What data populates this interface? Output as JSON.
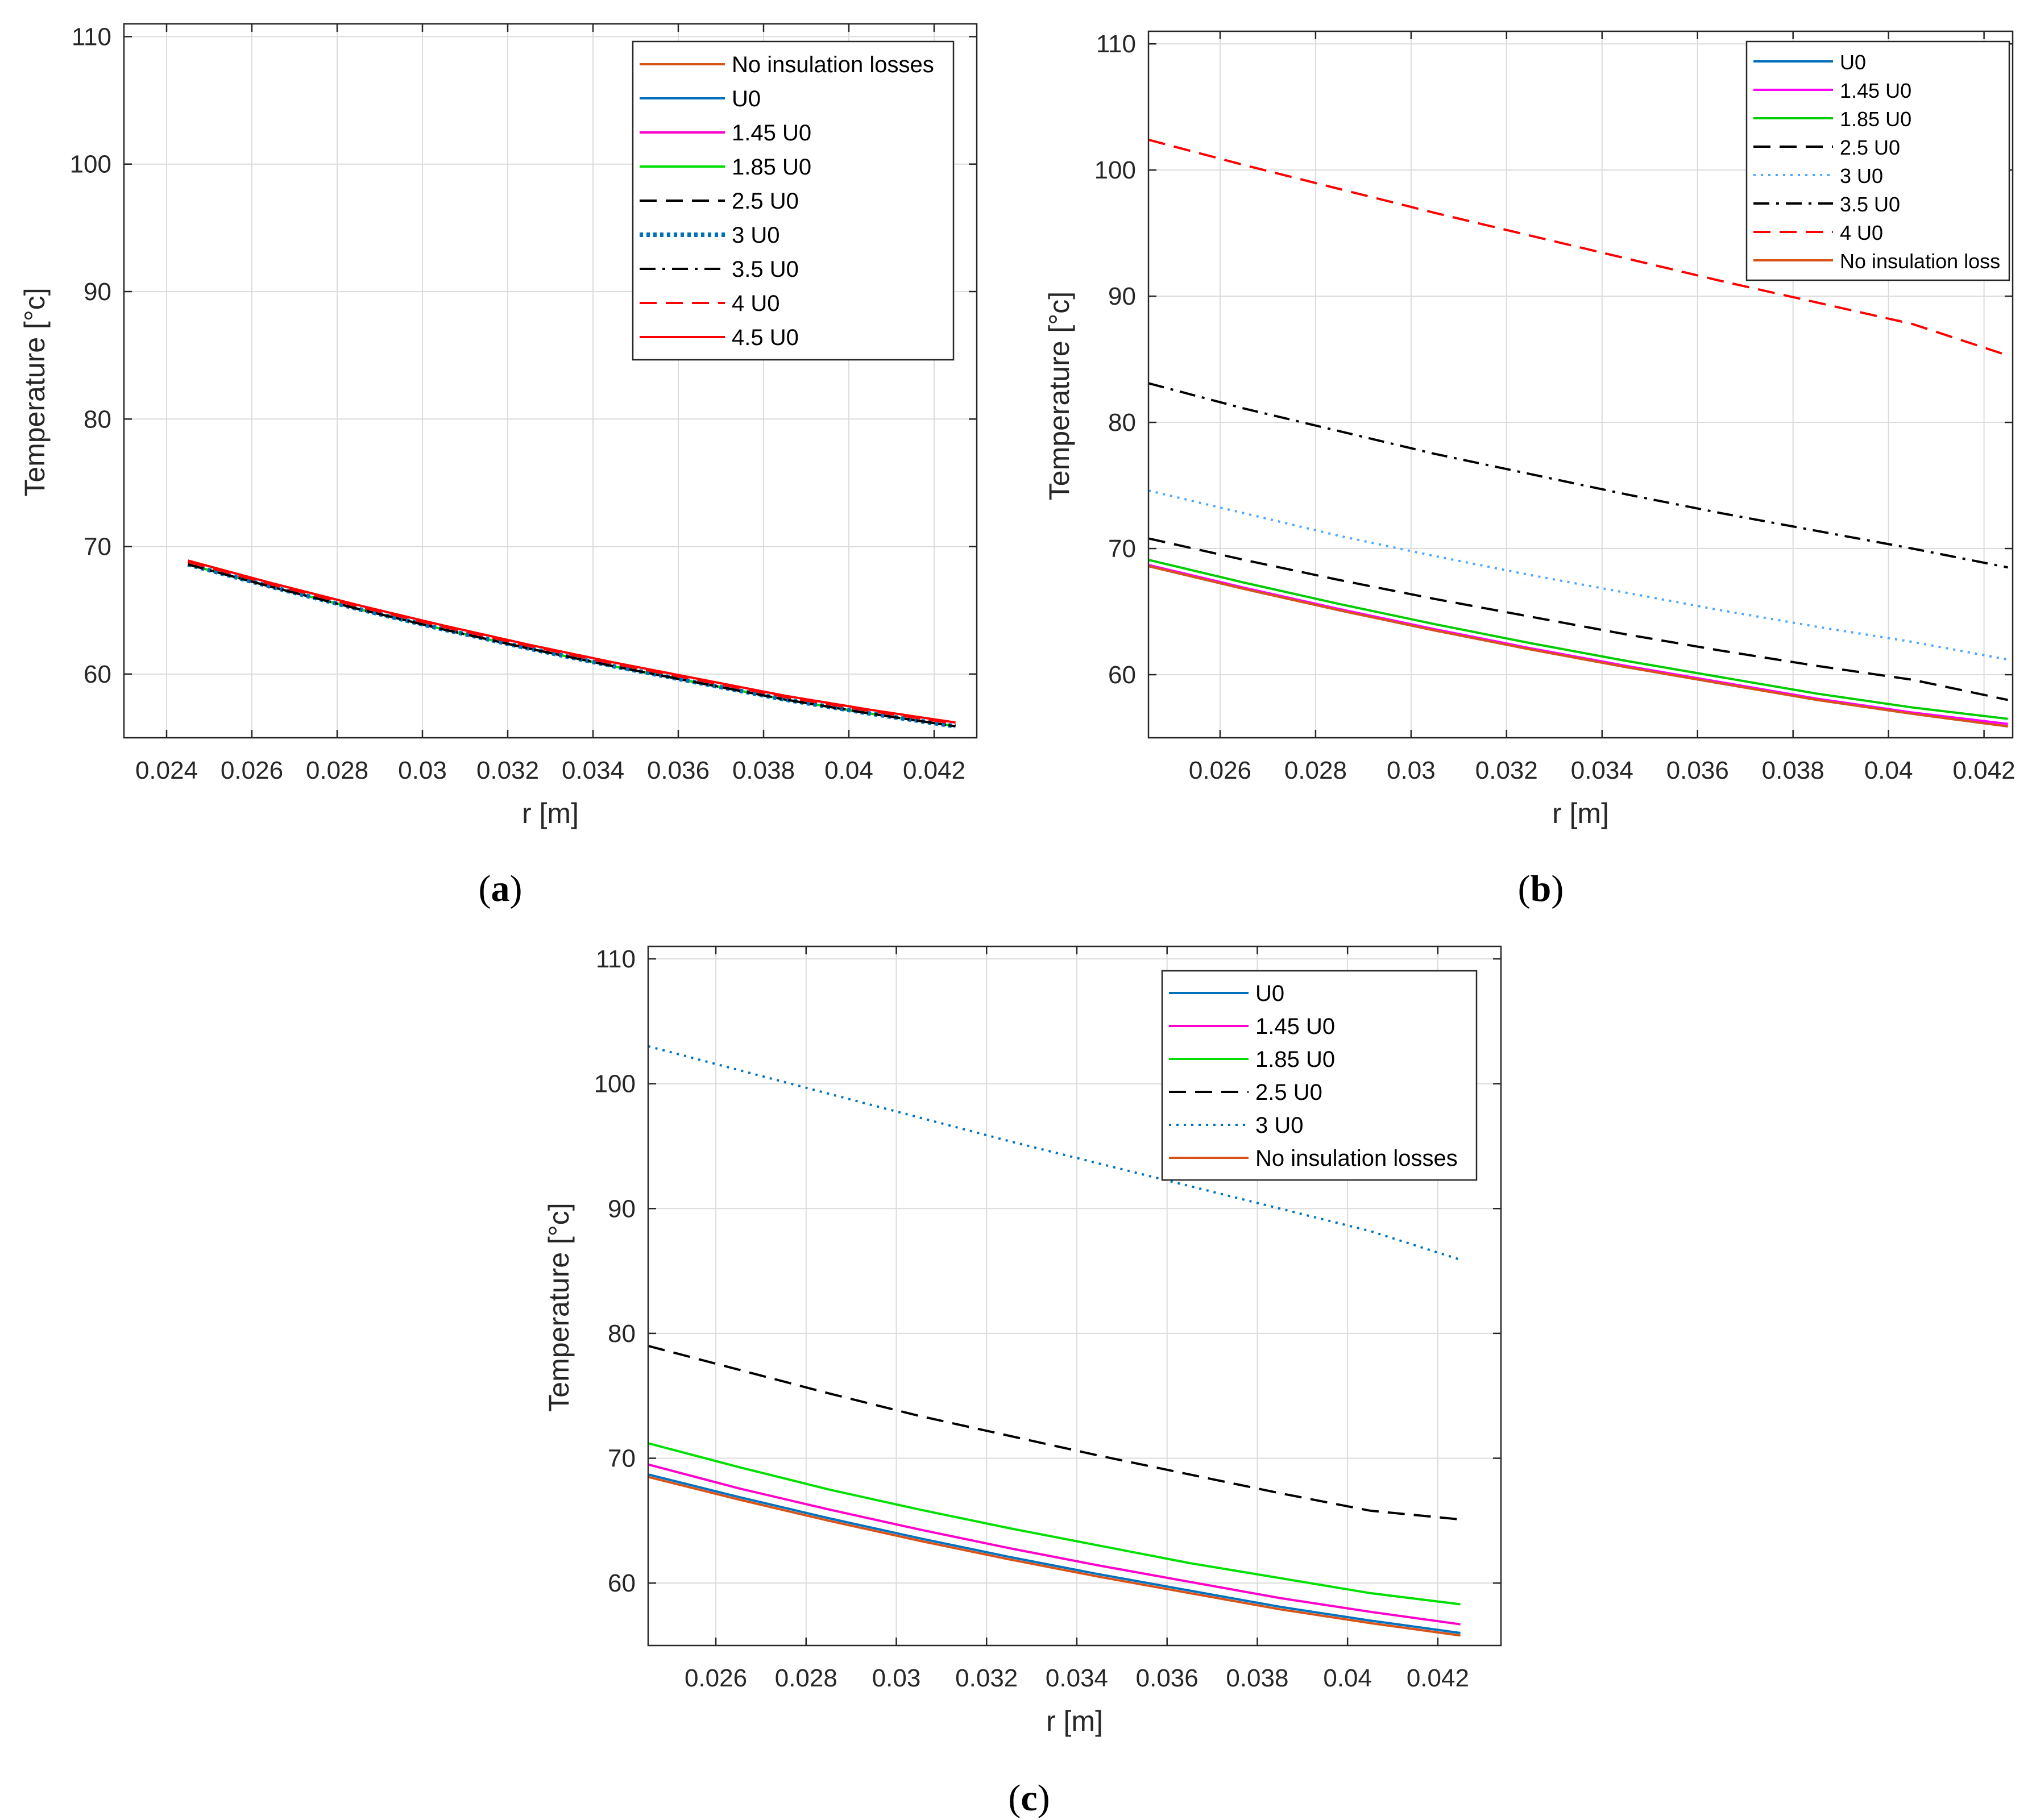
{
  "chart_data": [
    {
      "panel": "a",
      "type": "line",
      "xlabel": "r [m]",
      "ylabel": "Temperature [°c]",
      "xlim": [
        0.023,
        0.043
      ],
      "ylim": [
        55,
        111
      ],
      "xticks": [
        0.024,
        0.026,
        0.028,
        0.03,
        0.032,
        0.034,
        0.036,
        0.038,
        0.04,
        0.042
      ],
      "xtick_labels": [
        "0.024",
        "0.026",
        "0.028",
        "0.03",
        "0.032",
        "0.034",
        "0.036",
        "0.038",
        "0.04",
        "0.042"
      ],
      "yticks": [
        60,
        70,
        80,
        90,
        100,
        110
      ],
      "ytick_labels": [
        "60",
        "70",
        "80",
        "90",
        "100",
        "110"
      ],
      "grid": true,
      "legend_position": "top-right",
      "x": [
        0.0245,
        0.0265,
        0.0285,
        0.0305,
        0.0325,
        0.0345,
        0.0365,
        0.0385,
        0.0405,
        0.0425
      ],
      "series": [
        {
          "name": "No insulation losses",
          "color": "#d95319",
          "style": "solid",
          "values": [
            68.6,
            66.8,
            65.1,
            63.5,
            62.0,
            60.6,
            59.3,
            58.0,
            56.9,
            55.9
          ]
        },
        {
          "name": "U0",
          "color": "#0072bd",
          "style": "solid",
          "values": [
            68.6,
            66.8,
            65.1,
            63.5,
            62.0,
            60.6,
            59.3,
            58.0,
            56.9,
            55.9
          ]
        },
        {
          "name": "1.45 U0",
          "color": "#ff00cc",
          "style": "solid",
          "values": [
            68.6,
            66.8,
            65.1,
            63.5,
            62.0,
            60.6,
            59.3,
            58.0,
            56.9,
            55.9
          ]
        },
        {
          "name": "1.85 U0",
          "color": "#00e000",
          "style": "solid",
          "values": [
            68.6,
            66.8,
            65.1,
            63.5,
            62.0,
            60.6,
            59.3,
            58.0,
            56.9,
            55.9
          ]
        },
        {
          "name": "2.5 U0",
          "color": "#000000",
          "style": "dashed",
          "values": [
            68.6,
            66.8,
            65.1,
            63.5,
            62.0,
            60.6,
            59.3,
            58.0,
            56.9,
            55.9
          ]
        },
        {
          "name": "3 U0",
          "color": "#0072bd",
          "style": "dotted-bold",
          "values": [
            68.6,
            66.8,
            65.1,
            63.5,
            62.0,
            60.6,
            59.3,
            58.0,
            56.9,
            55.9
          ]
        },
        {
          "name": "3.5 U0",
          "color": "#000000",
          "style": "dashdot",
          "values": [
            68.6,
            66.8,
            65.1,
            63.5,
            62.0,
            60.6,
            59.3,
            58.0,
            56.9,
            55.9
          ]
        },
        {
          "name": "4 U0",
          "color": "#ff0000",
          "style": "dashed",
          "values": [
            68.8,
            67.0,
            65.3,
            63.7,
            62.2,
            60.8,
            59.5,
            58.2,
            57.1,
            56.1
          ]
        },
        {
          "name": "4.5 U0",
          "color": "#ff0000",
          "style": "solid",
          "values": [
            68.9,
            67.1,
            65.4,
            63.8,
            62.3,
            60.9,
            59.6,
            58.3,
            57.2,
            56.2
          ]
        }
      ]
    },
    {
      "panel": "b",
      "type": "line",
      "xlabel": "r [m]",
      "ylabel": "Temperature [°c]",
      "xlim": [
        0.0245,
        0.0426
      ],
      "ylim": [
        55,
        111
      ],
      "xticks": [
        0.026,
        0.028,
        0.03,
        0.032,
        0.034,
        0.036,
        0.038,
        0.04,
        0.042
      ],
      "xtick_labels": [
        "0.026",
        "0.028",
        "0.03",
        "0.032",
        "0.034",
        "0.036",
        "0.038",
        "0.04",
        "0.042"
      ],
      "yticks": [
        60,
        70,
        80,
        90,
        100,
        110
      ],
      "ytick_labels": [
        "60",
        "70",
        "80",
        "90",
        "100",
        "110"
      ],
      "grid": true,
      "legend_position": "top-right",
      "x": [
        0.0245,
        0.0265,
        0.0285,
        0.0305,
        0.0325,
        0.0345,
        0.0365,
        0.0385,
        0.0405,
        0.0425
      ],
      "series": [
        {
          "name": "U0",
          "color": "#0072bd",
          "style": "solid",
          "values": [
            68.6,
            66.8,
            65.1,
            63.5,
            62.0,
            60.6,
            59.3,
            58.0,
            56.9,
            55.9
          ]
        },
        {
          "name": "1.45 U0",
          "color": "#ff00ff",
          "style": "solid",
          "values": [
            68.7,
            66.9,
            65.2,
            63.6,
            62.1,
            60.7,
            59.4,
            58.1,
            57.0,
            56.1
          ]
        },
        {
          "name": "1.85 U0",
          "color": "#00cc00",
          "style": "solid",
          "values": [
            69.1,
            67.3,
            65.6,
            64.0,
            62.5,
            61.1,
            59.8,
            58.5,
            57.4,
            56.5
          ]
        },
        {
          "name": "2.5 U0",
          "color": "#000000",
          "style": "dashed",
          "values": [
            70.8,
            69.1,
            67.5,
            66.0,
            64.6,
            63.2,
            61.9,
            60.7,
            59.6,
            58.0
          ]
        },
        {
          "name": "3 U0",
          "color": "#4da6ff",
          "style": "dotted",
          "values": [
            74.6,
            72.8,
            71.0,
            69.4,
            67.9,
            66.5,
            65.1,
            63.8,
            62.6,
            61.2
          ]
        },
        {
          "name": "3.5 U0",
          "color": "#000000",
          "style": "dashdot",
          "values": [
            83.1,
            81.1,
            79.3,
            77.5,
            75.9,
            74.3,
            72.8,
            71.4,
            70.0,
            68.5
          ]
        },
        {
          "name": "4 U0",
          "color": "#ff0000",
          "style": "dashed",
          "values": [
            102.4,
            100.4,
            98.5,
            96.6,
            94.8,
            93.0,
            91.2,
            89.5,
            87.8,
            85.3
          ]
        },
        {
          "name": "No insulation loss",
          "color": "#d95319",
          "style": "solid",
          "values": [
            68.6,
            66.8,
            65.1,
            63.5,
            62.0,
            60.6,
            59.3,
            58.0,
            56.9,
            55.9
          ]
        }
      ]
    },
    {
      "panel": "c",
      "type": "line",
      "xlabel": "r [m]",
      "ylabel": "Temperature [°c]",
      "xlim": [
        0.0245,
        0.0434
      ],
      "ylim": [
        55,
        111
      ],
      "xticks": [
        0.026,
        0.028,
        0.03,
        0.032,
        0.034,
        0.036,
        0.038,
        0.04,
        0.042
      ],
      "xtick_labels": [
        "0.026",
        "0.028",
        "0.03",
        "0.032",
        "0.034",
        "0.036",
        "0.038",
        "0.04",
        "0.042"
      ],
      "yticks": [
        60,
        70,
        80,
        90,
        100,
        110
      ],
      "ytick_labels": [
        "60",
        "70",
        "80",
        "90",
        "100",
        "110"
      ],
      "grid": true,
      "legend_position": "top-right",
      "x": [
        0.0245,
        0.0265,
        0.0285,
        0.0305,
        0.0325,
        0.0345,
        0.0365,
        0.0385,
        0.0405,
        0.0425
      ],
      "series": [
        {
          "name": "U0",
          "color": "#0072bd",
          "style": "solid",
          "values": [
            68.7,
            66.9,
            65.2,
            63.6,
            62.1,
            60.7,
            59.4,
            58.1,
            57.0,
            56.0
          ]
        },
        {
          "name": "1.45 U0",
          "color": "#ff00cc",
          "style": "solid",
          "values": [
            69.5,
            67.6,
            65.9,
            64.3,
            62.8,
            61.4,
            60.1,
            58.8,
            57.7,
            56.7
          ]
        },
        {
          "name": "1.85 U0",
          "color": "#00e000",
          "style": "solid",
          "values": [
            71.2,
            69.3,
            67.5,
            65.9,
            64.4,
            63.0,
            61.6,
            60.4,
            59.2,
            58.3
          ]
        },
        {
          "name": "2.5 U0",
          "color": "#000000",
          "style": "dashed",
          "values": [
            79.0,
            77.1,
            75.2,
            73.4,
            71.8,
            70.2,
            68.7,
            67.2,
            65.8,
            65.1
          ]
        },
        {
          "name": "3 U0",
          "color": "#0072bd",
          "style": "dotted",
          "values": [
            103.0,
            101.1,
            99.2,
            97.3,
            95.4,
            93.6,
            91.8,
            90.0,
            88.2,
            85.9
          ]
        },
        {
          "name": "No insulation losses",
          "color": "#d95319",
          "style": "solid",
          "values": [
            68.5,
            66.7,
            65.0,
            63.4,
            61.9,
            60.5,
            59.2,
            57.9,
            56.8,
            55.8
          ]
        }
      ]
    }
  ],
  "panel_labels": [
    {
      "open": "(",
      "letter": "a",
      "close": ")"
    },
    {
      "open": "(",
      "letter": "b",
      "close": ")"
    },
    {
      "open": "(",
      "letter": "c",
      "close": ")"
    }
  ]
}
